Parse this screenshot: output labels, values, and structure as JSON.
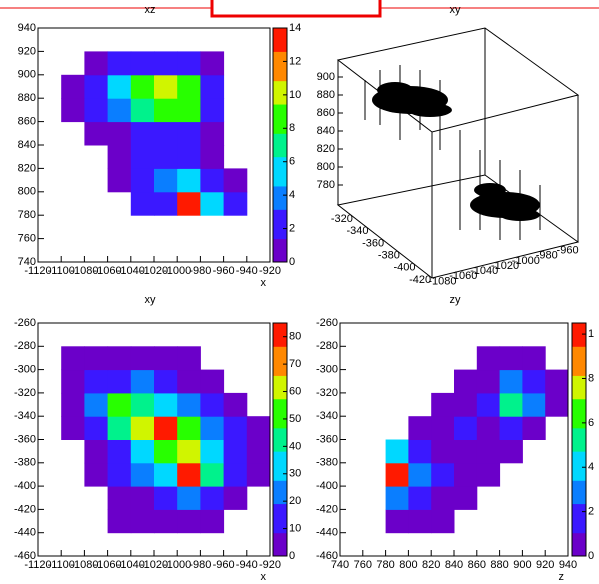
{
  "palette": [
    "#6b00c9",
    "#3b18ff",
    "#0a7eff",
    "#00d8ff",
    "#00f28c",
    "#28ff00",
    "#d0f500",
    "#ff8800",
    "#ff1a00"
  ],
  "chart_data": [
    {
      "type": "heatmap",
      "title": "xz",
      "xlabel": "x",
      "xlim": [
        -1120,
        -920
      ],
      "xticks": [
        -1120,
        -1100,
        -1080,
        -1060,
        -1040,
        -1020,
        -1000,
        -980,
        -960,
        -940,
        -920
      ],
      "ylim": [
        740,
        940
      ],
      "yticks": [
        740,
        760,
        780,
        800,
        820,
        840,
        860,
        880,
        900,
        920,
        940
      ],
      "zlim": [
        0,
        14
      ],
      "zticks": [
        0,
        2,
        4,
        6,
        8,
        10,
        12,
        14
      ],
      "z": [
        [
          null,
          null,
          null,
          null,
          null,
          null,
          null,
          null,
          null,
          null
        ],
        [
          null,
          null,
          null,
          null,
          null,
          null,
          null,
          null,
          null,
          null
        ],
        [
          null,
          null,
          null,
          null,
          2,
          3,
          14,
          5,
          2,
          null
        ],
        [
          null,
          null,
          null,
          1,
          2,
          4,
          6,
          3,
          1,
          null
        ],
        [
          null,
          null,
          null,
          1,
          2,
          2,
          2,
          1,
          null,
          null
        ],
        [
          null,
          null,
          1,
          1,
          2,
          2,
          2,
          1,
          null,
          null
        ],
        [
          null,
          1,
          2,
          4,
          7,
          9,
          8,
          3,
          null,
          null
        ],
        [
          null,
          1,
          2,
          6,
          9,
          10,
          8,
          2,
          null,
          null
        ],
        [
          null,
          null,
          1,
          2,
          3,
          3,
          2,
          1,
          null,
          null
        ],
        [
          null,
          null,
          null,
          null,
          null,
          null,
          null,
          null,
          null,
          null
        ]
      ]
    },
    {
      "type": "scatter3d",
      "title": "xy",
      "xticks": [
        -1080,
        -1060,
        -1040,
        -1020,
        -1000,
        -980,
        -960
      ],
      "yticks": [
        -320,
        -340,
        -360,
        -380,
        -400,
        -420
      ],
      "zticks": [
        780,
        800,
        820,
        840,
        860,
        880,
        900
      ]
    },
    {
      "type": "heatmap",
      "title": "xy",
      "xlabel": "x",
      "xlim": [
        -1120,
        -920
      ],
      "xticks": [
        -1120,
        -1100,
        -1080,
        -1060,
        -1040,
        -1020,
        -1000,
        -980,
        -960,
        -940,
        -920
      ],
      "ylim": [
        -460,
        -260
      ],
      "yticks": [
        -460,
        -440,
        -420,
        -400,
        -380,
        -360,
        -340,
        -320,
        -300,
        -280,
        -260
      ],
      "zlim": [
        0,
        85
      ],
      "zticks": [
        0,
        10,
        20,
        30,
        40,
        50,
        60,
        70,
        80
      ],
      "z": [
        [
          null,
          null,
          null,
          null,
          null,
          null,
          null,
          null,
          null,
          null
        ],
        [
          null,
          null,
          null,
          5,
          5,
          5,
          5,
          5,
          null,
          null
        ],
        [
          null,
          null,
          null,
          5,
          8,
          15,
          20,
          10,
          5,
          null
        ],
        [
          null,
          null,
          5,
          10,
          20,
          30,
          85,
          40,
          10,
          5
        ],
        [
          null,
          null,
          5,
          15,
          30,
          55,
          60,
          30,
          10,
          5
        ],
        [
          null,
          5,
          10,
          40,
          60,
          85,
          50,
          20,
          10,
          5
        ],
        [
          null,
          5,
          20,
          50,
          45,
          30,
          25,
          10,
          5,
          null
        ],
        [
          null,
          5,
          10,
          15,
          20,
          10,
          5,
          5,
          null,
          null
        ],
        [
          null,
          5,
          5,
          5,
          5,
          5,
          5,
          null,
          null,
          null
        ],
        [
          null,
          null,
          null,
          null,
          null,
          null,
          null,
          null,
          null,
          null
        ]
      ]
    },
    {
      "type": "heatmap",
      "title": "zy",
      "xlabel": "z",
      "xlim": [
        740,
        940
      ],
      "xticks": [
        740,
        760,
        780,
        800,
        820,
        840,
        860,
        880,
        900,
        920,
        940
      ],
      "ylim": [
        -460,
        -260
      ],
      "yticks": [
        -460,
        -440,
        -420,
        -400,
        -380,
        -360,
        -340,
        -320,
        -300,
        -280,
        -260
      ],
      "zlim": [
        0,
        1.05
      ],
      "zticks": [
        0,
        {
          "value": 0.2,
          "label": "2"
        },
        {
          "value": 0.4,
          "label": "4"
        },
        {
          "value": 0.6,
          "label": "6"
        },
        {
          "value": 0.8,
          "label": "8"
        },
        1
      ],
      "z": [
        [
          null,
          null,
          null,
          null,
          null,
          null,
          null,
          null,
          null,
          null
        ],
        [
          null,
          null,
          0.1,
          0.1,
          0.1,
          null,
          null,
          null,
          null,
          null
        ],
        [
          null,
          null,
          0.3,
          0.2,
          0.1,
          0.1,
          null,
          null,
          null,
          null
        ],
        [
          null,
          null,
          1,
          0.3,
          0.15,
          0.1,
          0.1,
          null,
          null,
          null
        ],
        [
          null,
          null,
          0.4,
          0.2,
          0.1,
          0.1,
          0.1,
          0.1,
          null,
          null
        ],
        [
          null,
          null,
          null,
          0.1,
          0.1,
          0.15,
          0.1,
          0.2,
          0.1,
          null
        ],
        [
          null,
          null,
          null,
          null,
          0.1,
          0.1,
          0.2,
          0.5,
          0.3,
          0.1
        ],
        [
          null,
          null,
          null,
          null,
          null,
          0.1,
          0.1,
          0.3,
          0.2,
          0.1
        ],
        [
          null,
          null,
          null,
          null,
          null,
          null,
          0.1,
          0.1,
          0.1,
          null
        ],
        [
          null,
          null,
          null,
          null,
          null,
          null,
          null,
          null,
          null,
          null
        ]
      ]
    }
  ]
}
